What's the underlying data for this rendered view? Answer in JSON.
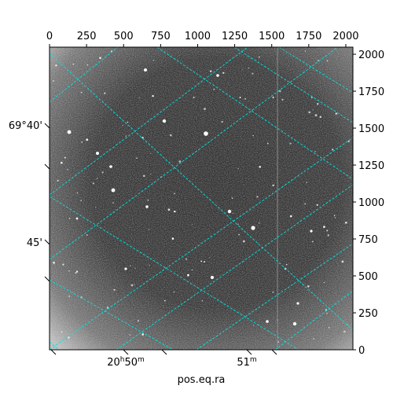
{
  "pixel_axes": {
    "x_ticks": [
      "0",
      "250",
      "500",
      "750",
      "1000",
      "1250",
      "1500",
      "1750",
      "2000"
    ],
    "y_ticks": [
      "0",
      "250",
      "500",
      "750",
      "1000",
      "1250",
      "1500",
      "1750",
      "2000"
    ],
    "x_max": 2048,
    "y_max": 2048
  },
  "wcs_axes": {
    "dec_labels": [
      {
        "text": "69°40'"
      },
      {
        "text": "45'"
      }
    ],
    "ra_labels": [
      {
        "h": "20",
        "h_unit": "h",
        "m": "50",
        "m_unit": "m"
      },
      {
        "h": "",
        "h_unit": "",
        "m": "51",
        "m_unit": "m"
      }
    ],
    "xlabel": "pos.eq.ra"
  },
  "colors": {
    "grid": "#00e5e5",
    "frame": "#000000",
    "image_dark": "#2a2a2a",
    "image_light": "#bdbdbd"
  }
}
